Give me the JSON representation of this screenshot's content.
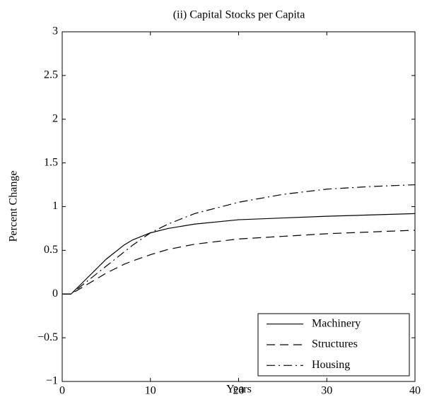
{
  "chart_data": {
    "type": "line",
    "title": "(ii) Capital Stocks per Capita",
    "xlabel": "Years",
    "ylabel": "Percent Change",
    "x": [
      0,
      1,
      2,
      3,
      4,
      5,
      6,
      7,
      8,
      10,
      12,
      15,
      20,
      25,
      30,
      35,
      40
    ],
    "series": [
      {
        "name": "Machinery",
        "color": "#000000",
        "dash": "solid",
        "values": [
          0,
          0,
          0.1,
          0.2,
          0.3,
          0.4,
          0.48,
          0.56,
          0.62,
          0.7,
          0.75,
          0.8,
          0.85,
          0.87,
          0.89,
          0.905,
          0.92
        ]
      },
      {
        "name": "Structures",
        "color": "#000000",
        "dash": "dashed",
        "values": [
          0,
          0,
          0.06,
          0.12,
          0.18,
          0.24,
          0.29,
          0.34,
          0.38,
          0.45,
          0.51,
          0.57,
          0.63,
          0.66,
          0.69,
          0.71,
          0.73
        ]
      },
      {
        "name": "Housing",
        "color": "#000000",
        "dash": "dashdot",
        "values": [
          0,
          0,
          0.08,
          0.16,
          0.24,
          0.32,
          0.4,
          0.48,
          0.56,
          0.7,
          0.8,
          0.92,
          1.05,
          1.14,
          1.2,
          1.23,
          1.25
        ]
      }
    ],
    "xlim": [
      0,
      40
    ],
    "xticks": [
      0,
      10,
      20,
      30,
      40
    ],
    "ylim": [
      -1,
      3
    ],
    "yticks": [
      {
        "value": -1,
        "label": "−1"
      },
      {
        "value": -0.5,
        "label": "−0.5"
      },
      0,
      0.5,
      1,
      1.5,
      2,
      2.5,
      3
    ],
    "legend": "lower right",
    "grid": false
  }
}
